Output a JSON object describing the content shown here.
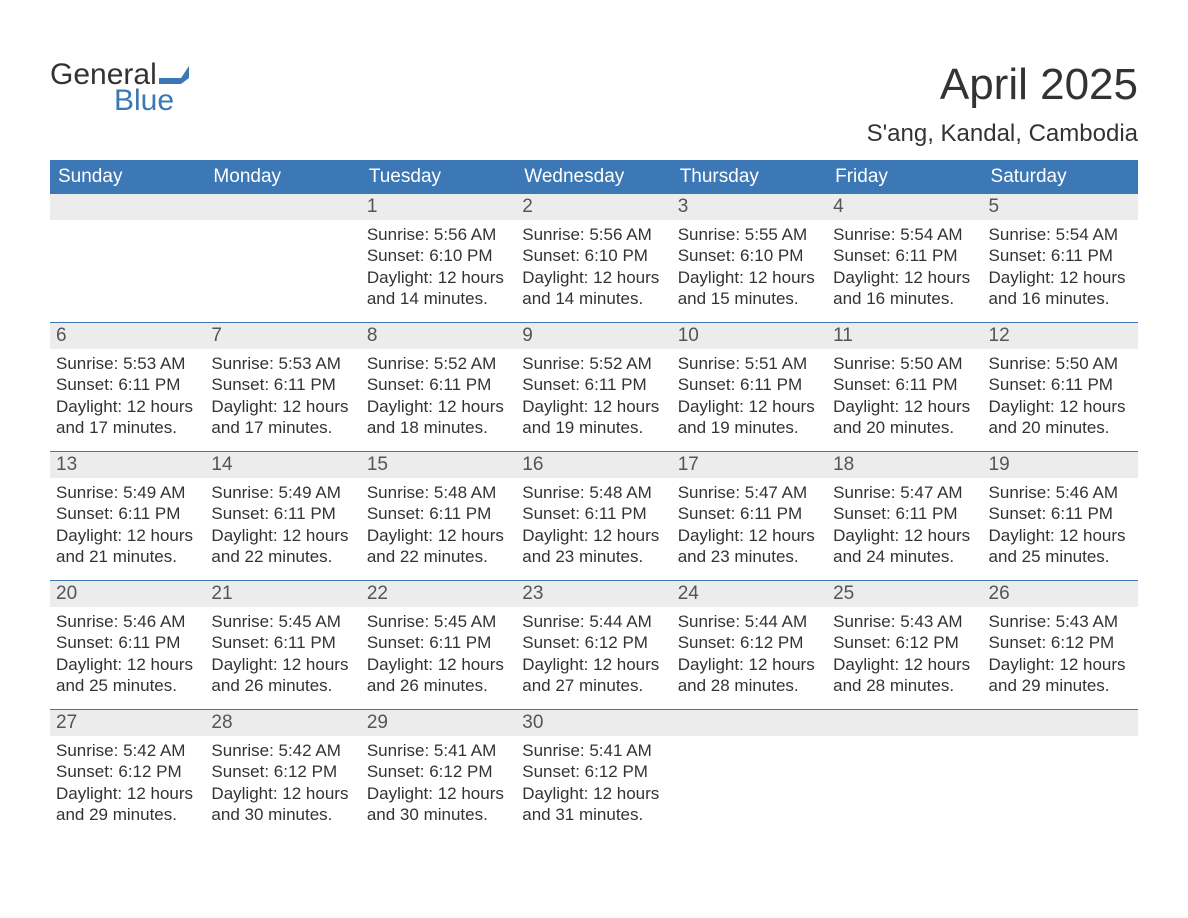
{
  "brand": {
    "word1": "General",
    "word2": "Blue",
    "accent_color": "#3b78b5"
  },
  "title": "April 2025",
  "location": "S'ang, Kandal, Cambodia",
  "colors": {
    "header_bg": "#3b78b5",
    "header_text": "#ffffff",
    "daynum_bg": "#ececec",
    "daynum_text": "#555555",
    "body_text": "#333333",
    "week_divider": "#3b78b5",
    "page_bg": "#ffffff"
  },
  "typography": {
    "title_fontsize": 44,
    "location_fontsize": 24,
    "weekday_fontsize": 19,
    "daynum_fontsize": 19,
    "body_fontsize": 17
  },
  "weekdays": [
    "Sunday",
    "Monday",
    "Tuesday",
    "Wednesday",
    "Thursday",
    "Friday",
    "Saturday"
  ],
  "weeks": [
    [
      {
        "day": "",
        "lines": []
      },
      {
        "day": "",
        "lines": []
      },
      {
        "day": "1",
        "lines": [
          "Sunrise: 5:56 AM",
          "Sunset: 6:10 PM",
          "Daylight: 12 hours and 14 minutes."
        ]
      },
      {
        "day": "2",
        "lines": [
          "Sunrise: 5:56 AM",
          "Sunset: 6:10 PM",
          "Daylight: 12 hours and 14 minutes."
        ]
      },
      {
        "day": "3",
        "lines": [
          "Sunrise: 5:55 AM",
          "Sunset: 6:10 PM",
          "Daylight: 12 hours and 15 minutes."
        ]
      },
      {
        "day": "4",
        "lines": [
          "Sunrise: 5:54 AM",
          "Sunset: 6:11 PM",
          "Daylight: 12 hours and 16 minutes."
        ]
      },
      {
        "day": "5",
        "lines": [
          "Sunrise: 5:54 AM",
          "Sunset: 6:11 PM",
          "Daylight: 12 hours and 16 minutes."
        ]
      }
    ],
    [
      {
        "day": "6",
        "lines": [
          "Sunrise: 5:53 AM",
          "Sunset: 6:11 PM",
          "Daylight: 12 hours and 17 minutes."
        ]
      },
      {
        "day": "7",
        "lines": [
          "Sunrise: 5:53 AM",
          "Sunset: 6:11 PM",
          "Daylight: 12 hours and 17 minutes."
        ]
      },
      {
        "day": "8",
        "lines": [
          "Sunrise: 5:52 AM",
          "Sunset: 6:11 PM",
          "Daylight: 12 hours and 18 minutes."
        ]
      },
      {
        "day": "9",
        "lines": [
          "Sunrise: 5:52 AM",
          "Sunset: 6:11 PM",
          "Daylight: 12 hours and 19 minutes."
        ]
      },
      {
        "day": "10",
        "lines": [
          "Sunrise: 5:51 AM",
          "Sunset: 6:11 PM",
          "Daylight: 12 hours and 19 minutes."
        ]
      },
      {
        "day": "11",
        "lines": [
          "Sunrise: 5:50 AM",
          "Sunset: 6:11 PM",
          "Daylight: 12 hours and 20 minutes."
        ]
      },
      {
        "day": "12",
        "lines": [
          "Sunrise: 5:50 AM",
          "Sunset: 6:11 PM",
          "Daylight: 12 hours and 20 minutes."
        ]
      }
    ],
    [
      {
        "day": "13",
        "lines": [
          "Sunrise: 5:49 AM",
          "Sunset: 6:11 PM",
          "Daylight: 12 hours and 21 minutes."
        ]
      },
      {
        "day": "14",
        "lines": [
          "Sunrise: 5:49 AM",
          "Sunset: 6:11 PM",
          "Daylight: 12 hours and 22 minutes."
        ]
      },
      {
        "day": "15",
        "lines": [
          "Sunrise: 5:48 AM",
          "Sunset: 6:11 PM",
          "Daylight: 12 hours and 22 minutes."
        ]
      },
      {
        "day": "16",
        "lines": [
          "Sunrise: 5:48 AM",
          "Sunset: 6:11 PM",
          "Daylight: 12 hours and 23 minutes."
        ]
      },
      {
        "day": "17",
        "lines": [
          "Sunrise: 5:47 AM",
          "Sunset: 6:11 PM",
          "Daylight: 12 hours and 23 minutes."
        ]
      },
      {
        "day": "18",
        "lines": [
          "Sunrise: 5:47 AM",
          "Sunset: 6:11 PM",
          "Daylight: 12 hours and 24 minutes."
        ]
      },
      {
        "day": "19",
        "lines": [
          "Sunrise: 5:46 AM",
          "Sunset: 6:11 PM",
          "Daylight: 12 hours and 25 minutes."
        ]
      }
    ],
    [
      {
        "day": "20",
        "lines": [
          "Sunrise: 5:46 AM",
          "Sunset: 6:11 PM",
          "Daylight: 12 hours and 25 minutes."
        ]
      },
      {
        "day": "21",
        "lines": [
          "Sunrise: 5:45 AM",
          "Sunset: 6:11 PM",
          "Daylight: 12 hours and 26 minutes."
        ]
      },
      {
        "day": "22",
        "lines": [
          "Sunrise: 5:45 AM",
          "Sunset: 6:11 PM",
          "Daylight: 12 hours and 26 minutes."
        ]
      },
      {
        "day": "23",
        "lines": [
          "Sunrise: 5:44 AM",
          "Sunset: 6:12 PM",
          "Daylight: 12 hours and 27 minutes."
        ]
      },
      {
        "day": "24",
        "lines": [
          "Sunrise: 5:44 AM",
          "Sunset: 6:12 PM",
          "Daylight: 12 hours and 28 minutes."
        ]
      },
      {
        "day": "25",
        "lines": [
          "Sunrise: 5:43 AM",
          "Sunset: 6:12 PM",
          "Daylight: 12 hours and 28 minutes."
        ]
      },
      {
        "day": "26",
        "lines": [
          "Sunrise: 5:43 AM",
          "Sunset: 6:12 PM",
          "Daylight: 12 hours and 29 minutes."
        ]
      }
    ],
    [
      {
        "day": "27",
        "lines": [
          "Sunrise: 5:42 AM",
          "Sunset: 6:12 PM",
          "Daylight: 12 hours and 29 minutes."
        ]
      },
      {
        "day": "28",
        "lines": [
          "Sunrise: 5:42 AM",
          "Sunset: 6:12 PM",
          "Daylight: 12 hours and 30 minutes."
        ]
      },
      {
        "day": "29",
        "lines": [
          "Sunrise: 5:41 AM",
          "Sunset: 6:12 PM",
          "Daylight: 12 hours and 30 minutes."
        ]
      },
      {
        "day": "30",
        "lines": [
          "Sunrise: 5:41 AM",
          "Sunset: 6:12 PM",
          "Daylight: 12 hours and 31 minutes."
        ]
      },
      {
        "day": "",
        "lines": []
      },
      {
        "day": "",
        "lines": []
      },
      {
        "day": "",
        "lines": []
      }
    ]
  ]
}
